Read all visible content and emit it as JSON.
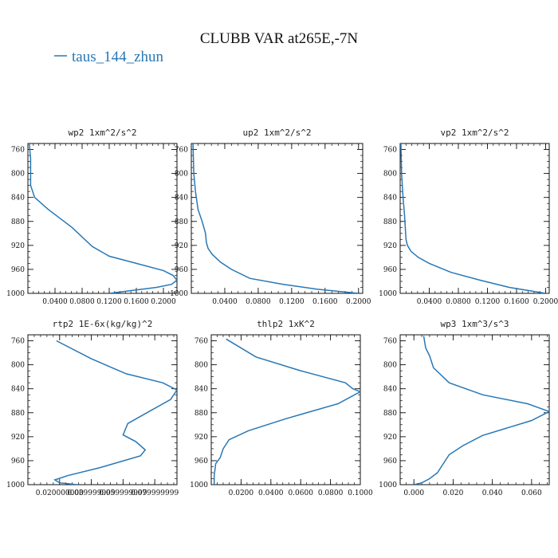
{
  "figure": {
    "title": "CLUBB VAR at265E,-7N",
    "legend": {
      "label": "taus_144_zhun",
      "color": "#2878b5"
    }
  },
  "chart_data": [
    {
      "type": "line",
      "title": "wp2  1xm^2/s^2",
      "xlim": [
        0.0,
        0.22
      ],
      "ylim": [
        1000,
        750
      ],
      "xticks": [
        0.04,
        0.08,
        0.12,
        0.16,
        0.2
      ],
      "xtick_labels": [
        "0.0400",
        "0.0800",
        "0.1200",
        "0.1600",
        "0.2000"
      ],
      "yticks": [
        760,
        800,
        840,
        880,
        920,
        960,
        1000
      ],
      "series": [
        {
          "x": [
            0.002,
            0.004,
            0.004,
            0.004,
            0.01,
            0.03,
            0.065,
            0.095,
            0.12,
            0.16,
            0.2,
            0.214,
            0.22,
            0.212,
            0.19,
            0.12
          ],
          "y": [
            750,
            775,
            800,
            820,
            840,
            860,
            890,
            922,
            938,
            950,
            962,
            970,
            978,
            985,
            990,
            1000
          ]
        }
      ]
    },
    {
      "type": "line",
      "title": "up2  1xm^2/s^2",
      "xlim": [
        0.0,
        0.205
      ],
      "ylim": [
        1000,
        750
      ],
      "xticks": [
        0.04,
        0.08,
        0.12,
        0.16,
        0.2
      ],
      "xtick_labels": [
        "0.0400",
        "0.0800",
        "0.1200",
        "0.1600",
        "0.2000"
      ],
      "yticks": [
        760,
        800,
        840,
        880,
        920,
        960,
        1000
      ],
      "series": [
        {
          "x": [
            0.002,
            0.003,
            0.005,
            0.008,
            0.013,
            0.017,
            0.018,
            0.02,
            0.025,
            0.035,
            0.048,
            0.07,
            0.11,
            0.15,
            0.2
          ],
          "y": [
            750,
            800,
            830,
            860,
            880,
            900,
            915,
            925,
            935,
            948,
            960,
            975,
            985,
            993,
            1000
          ]
        }
      ]
    },
    {
      "type": "line",
      "title": "vp2  1xm^2/s^2",
      "xlim": [
        0.0,
        0.205
      ],
      "ylim": [
        1000,
        750
      ],
      "xticks": [
        0.04,
        0.08,
        0.12,
        0.16,
        0.2
      ],
      "xtick_labels": [
        "0.0400",
        "0.0800",
        "0.1200",
        "0.1600",
        "0.2000"
      ],
      "yticks": [
        760,
        800,
        840,
        880,
        920,
        960,
        1000
      ],
      "series": [
        {
          "x": [
            0.001,
            0.002,
            0.004,
            0.006,
            0.007,
            0.008,
            0.01,
            0.015,
            0.025,
            0.04,
            0.07,
            0.11,
            0.15,
            0.2
          ],
          "y": [
            750,
            800,
            840,
            870,
            890,
            910,
            920,
            930,
            940,
            950,
            965,
            978,
            990,
            1000
          ]
        }
      ]
    },
    {
      "type": "line",
      "title": "rtp2  1E-6x(kg/kg)^2",
      "xlim": [
        0.0,
        0.094
      ],
      "ylim": [
        1000,
        750
      ],
      "xticks": [
        0.02,
        0.04,
        0.06,
        0.08
      ],
      "xtick_labels": [
        "0.020000000",
        "0.039999999",
        "0.059999999",
        "0.079999999"
      ],
      "yticks": [
        760,
        800,
        840,
        880,
        920,
        960,
        1000
      ],
      "series": [
        {
          "x": [
            0.018,
            0.04,
            0.062,
            0.085,
            0.094,
            0.09,
            0.075,
            0.063,
            0.06,
            0.068,
            0.074,
            0.071,
            0.045,
            0.025,
            0.017,
            0.02,
            0.031
          ],
          "y": [
            760,
            790,
            815,
            830,
            842,
            858,
            880,
            898,
            917,
            928,
            942,
            952,
            972,
            985,
            992,
            997,
            1000
          ]
        }
      ]
    },
    {
      "type": "line",
      "title": "thlp2  1xK^2",
      "xlim": [
        0.0,
        0.1
      ],
      "ylim": [
        1000,
        750
      ],
      "xticks": [
        0.02,
        0.04,
        0.06,
        0.08,
        0.1
      ],
      "xtick_labels": [
        "0.0200",
        "0.0400",
        "0.0600",
        "0.0800",
        "0.1000"
      ],
      "yticks": [
        760,
        800,
        840,
        880,
        920,
        960,
        1000
      ],
      "series": [
        {
          "x": [
            0.01,
            0.03,
            0.06,
            0.09,
            0.095,
            0.1,
            0.085,
            0.05,
            0.025,
            0.012,
            0.008,
            0.006,
            0.003,
            0.002,
            0.002
          ],
          "y": [
            757,
            787,
            810,
            830,
            840,
            845,
            865,
            890,
            910,
            925,
            940,
            955,
            965,
            985,
            1000
          ]
        }
      ]
    },
    {
      "type": "line",
      "title": "wp3  1xm^3/s^3",
      "xlim": [
        -0.007,
        0.069
      ],
      "ylim": [
        1000,
        750
      ],
      "xticks": [
        0.0,
        0.02,
        0.04,
        0.06
      ],
      "xtick_labels": [
        "0.000",
        "0.020",
        "0.040",
        "0.060"
      ],
      "yticks": [
        760,
        800,
        840,
        880,
        920,
        960,
        1000
      ],
      "series": [
        {
          "x": [
            0.005,
            0.006,
            0.008,
            0.01,
            0.018,
            0.035,
            0.058,
            0.069,
            0.06,
            0.035,
            0.025,
            0.018,
            0.016,
            0.014,
            0.012,
            0.008,
            0.004,
            0.0
          ],
          "y": [
            752,
            772,
            785,
            805,
            830,
            850,
            865,
            878,
            893,
            918,
            935,
            950,
            960,
            970,
            980,
            990,
            997,
            1000
          ]
        }
      ]
    }
  ]
}
